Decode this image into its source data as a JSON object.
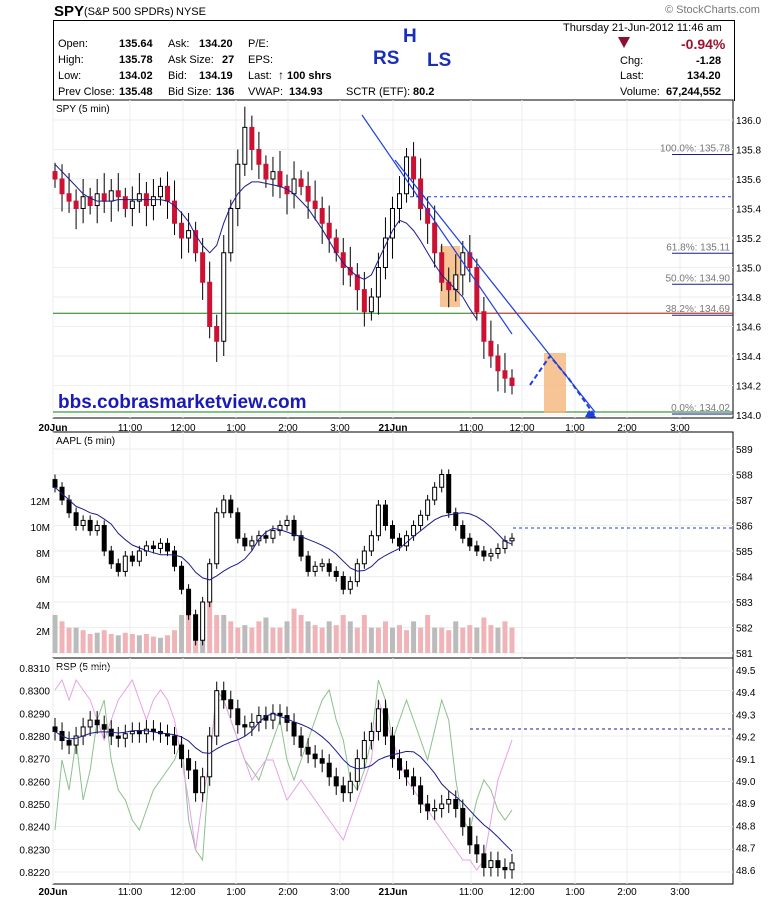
{
  "header": {
    "symbol": "SPY",
    "name": "(S&P 500 SPDRs)",
    "exchange": "NYSE",
    "copyright": "© StockCharts.com",
    "date": "Thursday  21-Jun-2012  11:46 am",
    "change_pct": "-0.94%",
    "chg_label": "Chg:",
    "chg": "-1.28",
    "last_label": "Last:",
    "last": "134.20",
    "volume_label": "Volume:",
    "volume": "67,244,552",
    "open_label": "Open:",
    "open": "135.64",
    "high_label": "High:",
    "high": "135.78",
    "low_label": "Low:",
    "low": "134.02",
    "prevclose_label": "Prev Close:",
    "prevclose": "135.48",
    "ask_label": "Ask:",
    "ask": "134.20",
    "asksize_label": "Ask Size:",
    "asksize": "27",
    "bid_label": "Bid:",
    "bid": "134.19",
    "bidsize_label": "Bid Size:",
    "bidsize": "136",
    "pe_label": "P/E:",
    "eps_label": "EPS:",
    "lastsize_label": "Last:",
    "lastsize": "100 shrs",
    "vwap_label": "VWAP:",
    "vwap": "134.93",
    "sctr_label": "SCTR (ETF):",
    "sctr": "80.2",
    "pattern_rs": "RS",
    "pattern_h": "H",
    "pattern_ls": "LS"
  },
  "watermark_url": "bbs.cobrasmarketview.com",
  "colors": {
    "up": "#ffffff",
    "down": "#cc1133",
    "ma": "#1c1c8c",
    "trend": "#1d3fe0",
    "support": "#138013",
    "resist": "#e03030",
    "box": "#f5b77a",
    "vol_up": "#f0b4b8",
    "vol_dn": "#bbbbbb",
    "rsp_green": "#8cc08c",
    "rsp_pink": "#e8a0e8"
  },
  "chart_data": [
    {
      "type": "candlestick",
      "title": "SPY (5 min)",
      "x_ticks": [
        "20Jun",
        "11:00",
        "12:00",
        "1:00",
        "2:00",
        "3:00",
        "21Jun",
        "11:00",
        "12:00",
        "1:00",
        "2:00",
        "3:00"
      ],
      "y_ticks": [
        "136.0",
        "135.8",
        "135.6",
        "135.4",
        "135.2",
        "135.0",
        "134.8",
        "134.6",
        "134.4",
        "134.2",
        "134.0"
      ],
      "ylim": [
        134.0,
        136.0
      ],
      "fib_levels": [
        {
          "label": "100.0%: 135.78",
          "value": 135.78
        },
        {
          "label": "61.8%: 135.11",
          "value": 135.11
        },
        {
          "label": "50.0%: 134.90",
          "value": 134.9
        },
        {
          "label": "38.2%: 134.69",
          "value": 134.69
        },
        {
          "label": "0.0%: 134.02",
          "value": 134.02
        }
      ],
      "support_line": 134.69,
      "dashed_line": 135.48,
      "closes": [
        135.6,
        135.5,
        135.45,
        135.4,
        135.48,
        135.42,
        135.5,
        135.45,
        135.52,
        135.48,
        135.4,
        135.45,
        135.5,
        135.42,
        135.48,
        135.55,
        135.45,
        135.3,
        135.2,
        135.25,
        135.1,
        134.9,
        134.6,
        134.5,
        135.1,
        135.4,
        135.7,
        135.95,
        135.8,
        135.7,
        135.6,
        135.65,
        135.55,
        135.5,
        135.6,
        135.55,
        135.45,
        135.4,
        135.3,
        135.2,
        135.1,
        135.0,
        134.95,
        134.85,
        134.7,
        134.8,
        135.0,
        135.2,
        135.4,
        135.5,
        135.75,
        135.6,
        135.4,
        135.3,
        135.1,
        134.9,
        134.85,
        134.95,
        135.1,
        135.0,
        134.7,
        134.5,
        134.4,
        134.3,
        134.25,
        134.2
      ],
      "ma": [
        135.7,
        135.65,
        135.6,
        135.55,
        135.5,
        135.47,
        135.45,
        135.45,
        135.45,
        135.46,
        135.46,
        135.46,
        135.46,
        135.46,
        135.46,
        135.46,
        135.45,
        135.42,
        135.37,
        135.31,
        135.22,
        135.15,
        135.1,
        135.15,
        135.3,
        135.42,
        135.5,
        135.55,
        135.58,
        135.58,
        135.57,
        135.56,
        135.55,
        135.53,
        135.5,
        135.45,
        135.4,
        135.33,
        135.26,
        135.18,
        135.1,
        135.03,
        134.98,
        134.94,
        134.92,
        134.95,
        135.05,
        135.15,
        135.25,
        135.32,
        135.3,
        135.25,
        135.18,
        135.1,
        135.02,
        134.95,
        134.9,
        134.85,
        134.8,
        134.72,
        134.65
      ]
    },
    {
      "type": "candlestick",
      "title": "AAPL (5 min)",
      "y_ticks_right": [
        "589",
        "588",
        "587",
        "586",
        "585",
        "584",
        "583",
        "582",
        "581"
      ],
      "volume_ticks": [
        "12M",
        "10M",
        "8M",
        "6M",
        "4M",
        "2M"
      ],
      "ylim": [
        581,
        589
      ],
      "dashed_line": 585.9
    },
    {
      "type": "candlestick",
      "title": "RSP (5 min)",
      "y_ticks_left": [
        "0.8310",
        "0.8300",
        "0.8290",
        "0.8280",
        "0.8270",
        "0.8260",
        "0.8250",
        "0.8240",
        "0.8230",
        "0.8220"
      ],
      "y_ticks_right": [
        "49.5",
        "49.4",
        "49.3",
        "49.2",
        "49.1",
        "49.0",
        "48.9",
        "48.8",
        "48.7",
        "48.6"
      ],
      "ylim": [
        0.8217,
        0.8313
      ],
      "dashed_line": 0.8283
    }
  ]
}
